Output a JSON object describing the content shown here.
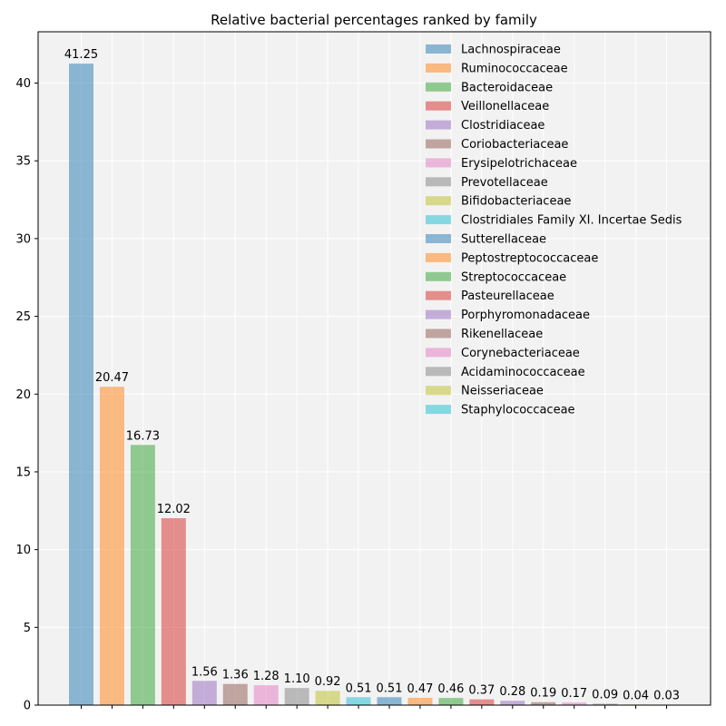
{
  "chart_data": {
    "type": "bar",
    "title": "Relative bacterial percentages ranked by family",
    "xlabel": "",
    "ylabel": "",
    "ylim": [
      0,
      43.3
    ],
    "yticks": [
      0,
      5,
      10,
      15,
      20,
      25,
      30,
      35,
      40
    ],
    "grid": true,
    "legend_position": "top-right",
    "categories": [
      "Lachnospiraceae",
      "Ruminococcaceae",
      "Bacteroidaceae",
      "Veillonellaceae",
      "Clostridiaceae",
      "Coriobacteriaceae",
      "Erysipelotrichaceae",
      "Prevotellaceae",
      "Bifidobacteriaceae",
      "Clostridiales Family XI. Incertae Sedis",
      "Sutterellaceae",
      "Peptostreptococcaceae",
      "Streptococcaceae",
      "Pasteurellaceae",
      "Porphyromonadaceae",
      "Rikenellaceae",
      "Corynebacteriaceae",
      "Acidaminococcaceae",
      "Neisseriaceae",
      "Staphylococcaceae"
    ],
    "values": [
      41.25,
      20.47,
      16.73,
      12.02,
      1.56,
      1.36,
      1.28,
      1.1,
      0.92,
      0.51,
      0.51,
      0.47,
      0.46,
      0.37,
      0.28,
      0.19,
      0.17,
      0.09,
      0.04,
      0.03
    ],
    "value_labels": [
      "41.25",
      "20.47",
      "16.73",
      "12.02",
      "1.56",
      "1.36",
      "1.28",
      "1.10",
      "0.92",
      "0.51",
      "0.51",
      "0.47",
      "0.46",
      "0.37",
      "0.28",
      "0.19",
      "0.17",
      "0.09",
      "0.04",
      "0.03"
    ],
    "colors": [
      "#1f77b4",
      "#ff7f0e",
      "#2ca02c",
      "#d62728",
      "#9467bd",
      "#8c564b",
      "#e377c2",
      "#7f7f7f",
      "#bcbd22",
      "#17becf",
      "#1f77b4",
      "#ff7f0e",
      "#2ca02c",
      "#d62728",
      "#9467bd",
      "#8c564b",
      "#e377c2",
      "#7f7f7f",
      "#bcbd22",
      "#17becf"
    ],
    "bar_opacity": 0.5,
    "plot_background": "#f2f2f2"
  }
}
